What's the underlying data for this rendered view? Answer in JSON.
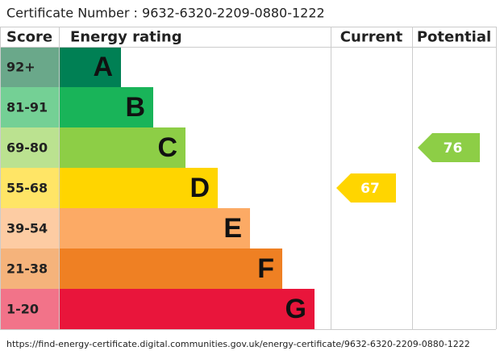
{
  "header": {
    "certificate": "Certificate Number : 9632-6320-2209-0880-1222"
  },
  "table": {
    "headers": [
      "Score",
      "Energy rating",
      "Current",
      "Potential"
    ],
    "bands": [
      {
        "score": "92+",
        "letter": "A",
        "color": "#008054",
        "score_color": "#6aa88a"
      },
      {
        "score": "81-91",
        "letter": "B",
        "color": "#19b459",
        "score_color": "#74d095"
      },
      {
        "score": "69-80",
        "letter": "C",
        "color": "#8dce46",
        "score_color": "#bbe290"
      },
      {
        "score": "55-68",
        "letter": "D",
        "color": "#ffd500",
        "score_color": "#ffe566"
      },
      {
        "score": "39-54",
        "letter": "E",
        "color": "#fcaa65",
        "score_color": "#fdcca3"
      },
      {
        "score": "21-38",
        "letter": "F",
        "color": "#ef8023",
        "score_color": "#f5b37b"
      },
      {
        "score": "1-20",
        "letter": "G",
        "color": "#e9153b",
        "score_color": "#f27389"
      }
    ],
    "current": 67,
    "potential": 76
  },
  "footer": {
    "url": "https://find-energy-certificate.digital.communities.gov.uk/energy-certificate/9632-6320-2209-0880-1222"
  }
}
